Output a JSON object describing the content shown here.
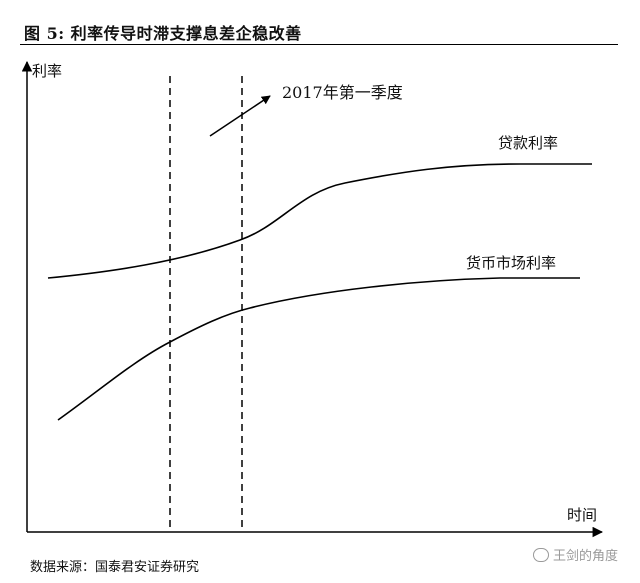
{
  "figure": {
    "title": "图 5: 利率传导时滞支撑息差企稳改善",
    "source": "数据来源：国泰君安证券研究",
    "watermark": "王剑的角度"
  },
  "diagram": {
    "y_axis_label": "利率",
    "x_axis_label": "时间",
    "annotation": "2017年第一季度",
    "curves": [
      {
        "name": "贷款利率",
        "color": "#000000"
      },
      {
        "name": "货币市场利率",
        "color": "#000000"
      }
    ]
  }
}
